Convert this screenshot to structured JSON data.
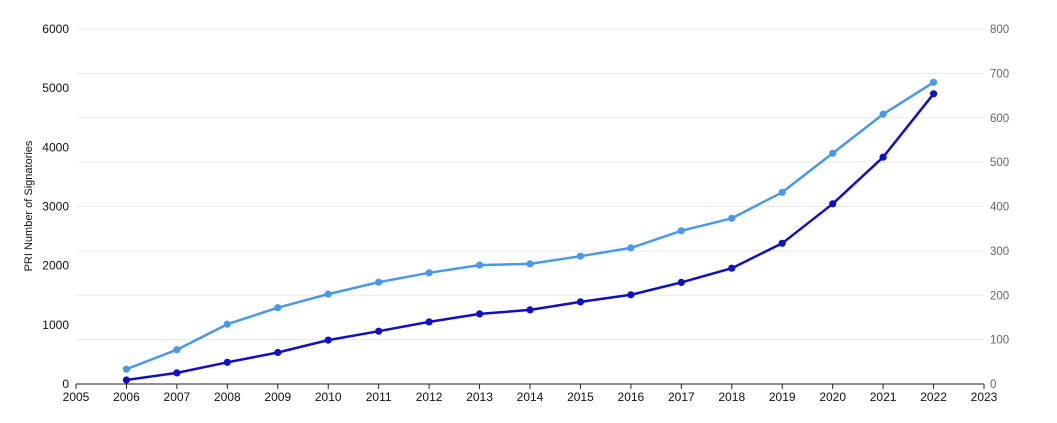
{
  "chart_data": {
    "type": "line",
    "ylabel": "PRI Number of Signatories",
    "x_ticks": [
      2005,
      2006,
      2007,
      2008,
      2009,
      2010,
      2011,
      2012,
      2013,
      2014,
      2015,
      2016,
      2017,
      2018,
      2019,
      2020,
      2021,
      2022,
      2023
    ],
    "xlim": [
      2005,
      2023
    ],
    "ylim_left": [
      0,
      6000
    ],
    "y_ticks_left": [
      0,
      1000,
      2000,
      3000,
      4000,
      5000,
      6000
    ],
    "ylim_right": [
      0,
      800
    ],
    "y_ticks_right": [
      0,
      100,
      200,
      300,
      400,
      500,
      600,
      700,
      800
    ],
    "grid": true,
    "series": [
      {
        "axis": "left",
        "color": "#4a98ea",
        "x": [
          2006,
          2007,
          2008,
          2009,
          2010,
          2011,
          2012,
          2013,
          2014,
          2015,
          2016,
          2017,
          2018,
          2019,
          2020,
          2021,
          2022
        ],
        "values": [
          250,
          580,
          1010,
          1290,
          1520,
          1720,
          1880,
          2010,
          2030,
          2160,
          2300,
          2590,
          2800,
          3240,
          3900,
          4560,
          5100
        ]
      },
      {
        "axis": "right",
        "color": "#1010c0",
        "x": [
          2006,
          2007,
          2008,
          2009,
          2010,
          2011,
          2012,
          2013,
          2014,
          2015,
          2016,
          2017,
          2018,
          2019,
          2020,
          2021,
          2022
        ],
        "values": [
          9,
          25,
          49,
          71,
          99,
          119,
          140,
          158,
          167,
          185,
          201,
          229,
          261,
          317,
          406,
          511,
          654
        ]
      }
    ]
  }
}
